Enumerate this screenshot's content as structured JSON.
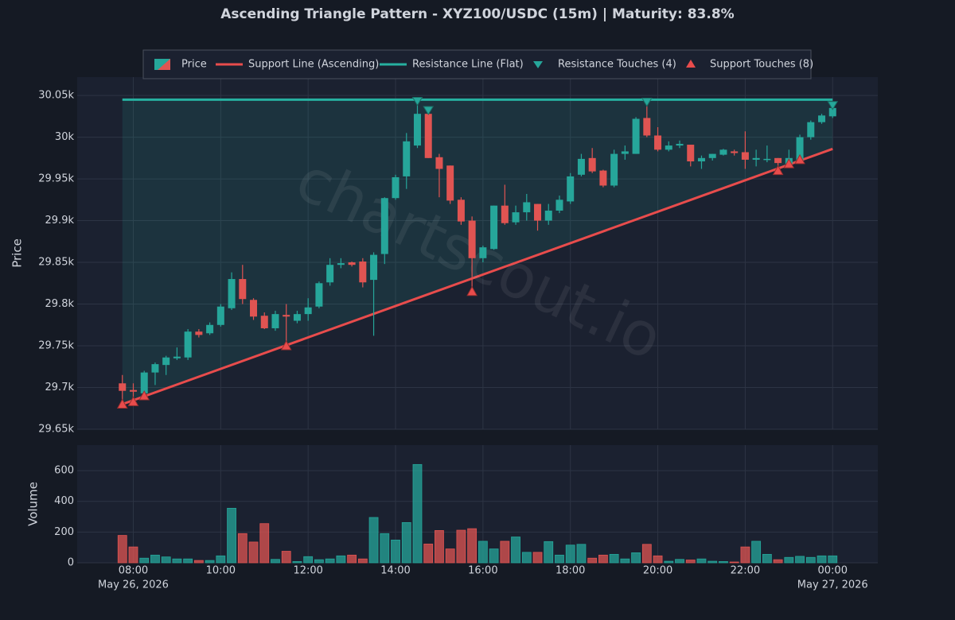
{
  "chart_data": {
    "type": "candlestick",
    "title": "Ascending Triangle Pattern - XYZ100/USDC (15m) | Maturity: 83.8%",
    "watermark": "chartscout.io",
    "price_name": "Price",
    "up_color": "#26a69a",
    "down_color": "#e05452",
    "ylabel": "Price",
    "x": [
      "2026-05-26T07:45",
      "2026-05-26T08:00",
      "2026-05-26T08:15",
      "2026-05-26T08:30",
      "2026-05-26T08:45",
      "2026-05-26T09:00",
      "2026-05-26T09:15",
      "2026-05-26T09:30",
      "2026-05-26T09:45",
      "2026-05-26T10:00",
      "2026-05-26T10:15",
      "2026-05-26T10:30",
      "2026-05-26T10:45",
      "2026-05-26T11:00",
      "2026-05-26T11:15",
      "2026-05-26T11:30",
      "2026-05-26T11:45",
      "2026-05-26T12:00",
      "2026-05-26T12:15",
      "2026-05-26T12:30",
      "2026-05-26T12:45",
      "2026-05-26T13:00",
      "2026-05-26T13:15",
      "2026-05-26T13:30",
      "2026-05-26T13:45",
      "2026-05-26T14:00",
      "2026-05-26T14:15",
      "2026-05-26T14:30",
      "2026-05-26T14:45",
      "2026-05-26T15:00",
      "2026-05-26T15:15",
      "2026-05-26T15:30",
      "2026-05-26T15:45",
      "2026-05-26T16:00",
      "2026-05-26T16:15",
      "2026-05-26T16:30",
      "2026-05-26T16:45",
      "2026-05-26T17:00",
      "2026-05-26T17:15",
      "2026-05-26T17:30",
      "2026-05-26T17:45",
      "2026-05-26T18:00",
      "2026-05-26T18:15",
      "2026-05-26T18:30",
      "2026-05-26T18:45",
      "2026-05-26T19:00",
      "2026-05-26T19:15",
      "2026-05-26T19:30",
      "2026-05-26T19:45",
      "2026-05-26T20:00",
      "2026-05-26T20:15",
      "2026-05-26T20:30",
      "2026-05-26T20:45",
      "2026-05-26T21:00",
      "2026-05-26T21:15",
      "2026-05-26T21:30",
      "2026-05-26T21:45",
      "2026-05-26T22:00",
      "2026-05-26T22:15",
      "2026-05-26T22:30",
      "2026-05-26T22:45",
      "2026-05-26T23:00",
      "2026-05-26T23:15",
      "2026-05-26T23:30",
      "2026-05-26T23:45",
      "2026-05-27T00:00"
    ],
    "open": [
      29705,
      29697,
      29693,
      29718,
      29727,
      29735,
      29736,
      29767,
      29765,
      29775,
      29795,
      29830,
      29805,
      29786,
      29771,
      29787,
      29780,
      29788,
      29797,
      29826,
      29847,
      29850,
      29851,
      29829,
      29860,
      29927,
      29953,
      29990,
      30028,
      29976,
      29966,
      29925,
      29900,
      29855,
      29866,
      29918,
      29898,
      29910,
      29920,
      29900,
      29912,
      29923,
      29955,
      29975,
      29960,
      29942,
      29980,
      29980,
      30023,
      30002,
      29985,
      29990,
      29991,
      29971,
      29975,
      29979,
      29983,
      29982,
      29973,
      29973,
      29975,
      29968,
      29972,
      30000,
      30018,
      30025
    ],
    "high": [
      29715,
      29705,
      29720,
      29730,
      29738,
      29748,
      29770,
      29770,
      29778,
      29800,
      29838,
      29847,
      29807,
      29790,
      29792,
      29800,
      29792,
      29807,
      29827,
      29855,
      29855,
      29851,
      29855,
      29862,
      29928,
      29955,
      30005,
      30045,
      30030,
      29980,
      29966,
      29928,
      29905,
      29870,
      29918,
      29943,
      29918,
      29932,
      29920,
      29920,
      29930,
      29957,
      29980,
      29987,
      29961,
      29985,
      29990,
      30024,
      30045,
      30012,
      29995,
      29996,
      29991,
      29978,
      29980,
      29986,
      29985,
      30007,
      29985,
      29990,
      29975,
      29985,
      30003,
      30020,
      30028,
      30040
    ],
    "low": [
      29680,
      29685,
      29690,
      29703,
      29715,
      29733,
      29733,
      29760,
      29763,
      29773,
      29793,
      29800,
      29781,
      29770,
      29768,
      29750,
      29777,
      29780,
      29795,
      29822,
      29843,
      29845,
      29820,
      29762,
      29848,
      29925,
      29938,
      29987,
      29975,
      29928,
      29920,
      29895,
      29815,
      29850,
      29865,
      29895,
      29895,
      29900,
      29888,
      29895,
      29909,
      29920,
      29953,
      29957,
      29940,
      29940,
      29973,
      29980,
      30000,
      29983,
      29983,
      29987,
      29965,
      29962,
      29972,
      29978,
      29978,
      29962,
      29965,
      29970,
      29960,
      29968,
      29972,
      29997,
      30016,
      30023
    ],
    "close": [
      29696,
      29695,
      29718,
      29728,
      29736,
      29737,
      29767,
      29763,
      29775,
      29797,
      29830,
      29806,
      29785,
      29771,
      29788,
      29785,
      29788,
      29796,
      29825,
      29847,
      29849,
      29847,
      29826,
      29859,
      29927,
      29952,
      29995,
      30028,
      29975,
      29962,
      29924,
      29899,
      29855,
      29868,
      29918,
      29897,
      29910,
      29922,
      29900,
      29912,
      29925,
      29953,
      29974,
      29959,
      29942,
      29980,
      29983,
      30022,
      30002,
      29985,
      29990,
      29992,
      29971,
      29975,
      29980,
      29985,
      29981,
      29973,
      29975,
      29974,
      29969,
      29975,
      30000,
      30018,
      30026,
      30035
    ],
    "xlim": [
      "2026-05-26T06:43",
      "2026-05-27T01:02"
    ],
    "xticks": [
      {
        "value": "2026-05-26T08:00",
        "label": "08:00"
      },
      {
        "value": "2026-05-26T10:00",
        "label": "10:00"
      },
      {
        "value": "2026-05-26T12:00",
        "label": "12:00"
      },
      {
        "value": "2026-05-26T14:00",
        "label": "14:00"
      },
      {
        "value": "2026-05-26T16:00",
        "label": "16:00"
      },
      {
        "value": "2026-05-26T18:00",
        "label": "18:00"
      },
      {
        "value": "2026-05-26T20:00",
        "label": "20:00"
      },
      {
        "value": "2026-05-26T22:00",
        "label": "22:00"
      },
      {
        "value": "2026-05-27T00:00",
        "label": "00:00"
      }
    ],
    "xtick_dates": [
      {
        "value": "2026-05-26T08:00",
        "label": "May 26, 2026"
      },
      {
        "value": "2026-05-27T00:00",
        "label": "May 27, 2026"
      }
    ],
    "ylim": [
      29650,
      30072
    ],
    "yticks": [
      {
        "value": 29650,
        "label": "29.65k"
      },
      {
        "value": 29700,
        "label": "29.7k"
      },
      {
        "value": 29750,
        "label": "29.75k"
      },
      {
        "value": 29800,
        "label": "29.8k"
      },
      {
        "value": 29850,
        "label": "29.85k"
      },
      {
        "value": 29900,
        "label": "29.9k"
      },
      {
        "value": 29950,
        "label": "29.95k"
      },
      {
        "value": 30000,
        "label": "30k"
      },
      {
        "value": 30050,
        "label": "30.05k"
      }
    ],
    "support": {
      "name": "Support Line (Ascending)",
      "color": "#e84c4c",
      "x": [
        "2026-05-26T07:45",
        "2026-05-27T00:00"
      ],
      "values": [
        29680,
        29986
      ]
    },
    "resistance": {
      "name": "Resistance Line (Flat)",
      "color": "#26b0a0",
      "x": [
        "2026-05-26T07:45",
        "2026-05-27T00:00"
      ],
      "values": [
        30045,
        30045
      ]
    },
    "resistance_touches": {
      "name": "Resistance Touches (4)",
      "color": "#26a69a",
      "x": [
        "2026-05-26T14:30",
        "2026-05-26T14:45",
        "2026-05-26T19:45",
        "2026-05-27T00:00"
      ],
      "values": [
        30043,
        30032,
        30042,
        30038
      ]
    },
    "support_touches": {
      "name": "Support Touches (8)",
      "color": "#e84c4c",
      "x": [
        "2026-05-26T07:45",
        "2026-05-26T08:00",
        "2026-05-26T08:15",
        "2026-05-26T11:30",
        "2026-05-26T15:45",
        "2026-05-26T22:45",
        "2026-05-26T23:00",
        "2026-05-26T23:15"
      ],
      "values": [
        29680,
        29683,
        29690,
        29750,
        29815,
        29960,
        29968,
        29973
      ]
    },
    "volume": {
      "ylabel": "Volume",
      "values": [
        178,
        103,
        30,
        50,
        38,
        25,
        25,
        15,
        15,
        45,
        355,
        190,
        135,
        255,
        22,
        75,
        8,
        40,
        20,
        25,
        45,
        50,
        25,
        295,
        190,
        148,
        262,
        640,
        122,
        210,
        90,
        212,
        222,
        140,
        90,
        140,
        168,
        68,
        68,
        138,
        50,
        115,
        120,
        30,
        50,
        55,
        25,
        65,
        120,
        45,
        10,
        22,
        18,
        25,
        10,
        8,
        5,
        103,
        140,
        55,
        20,
        35,
        42,
        35,
        45,
        45
      ],
      "ylim": [
        0,
        766
      ],
      "yticks": [
        0,
        200,
        400,
        600
      ]
    }
  }
}
